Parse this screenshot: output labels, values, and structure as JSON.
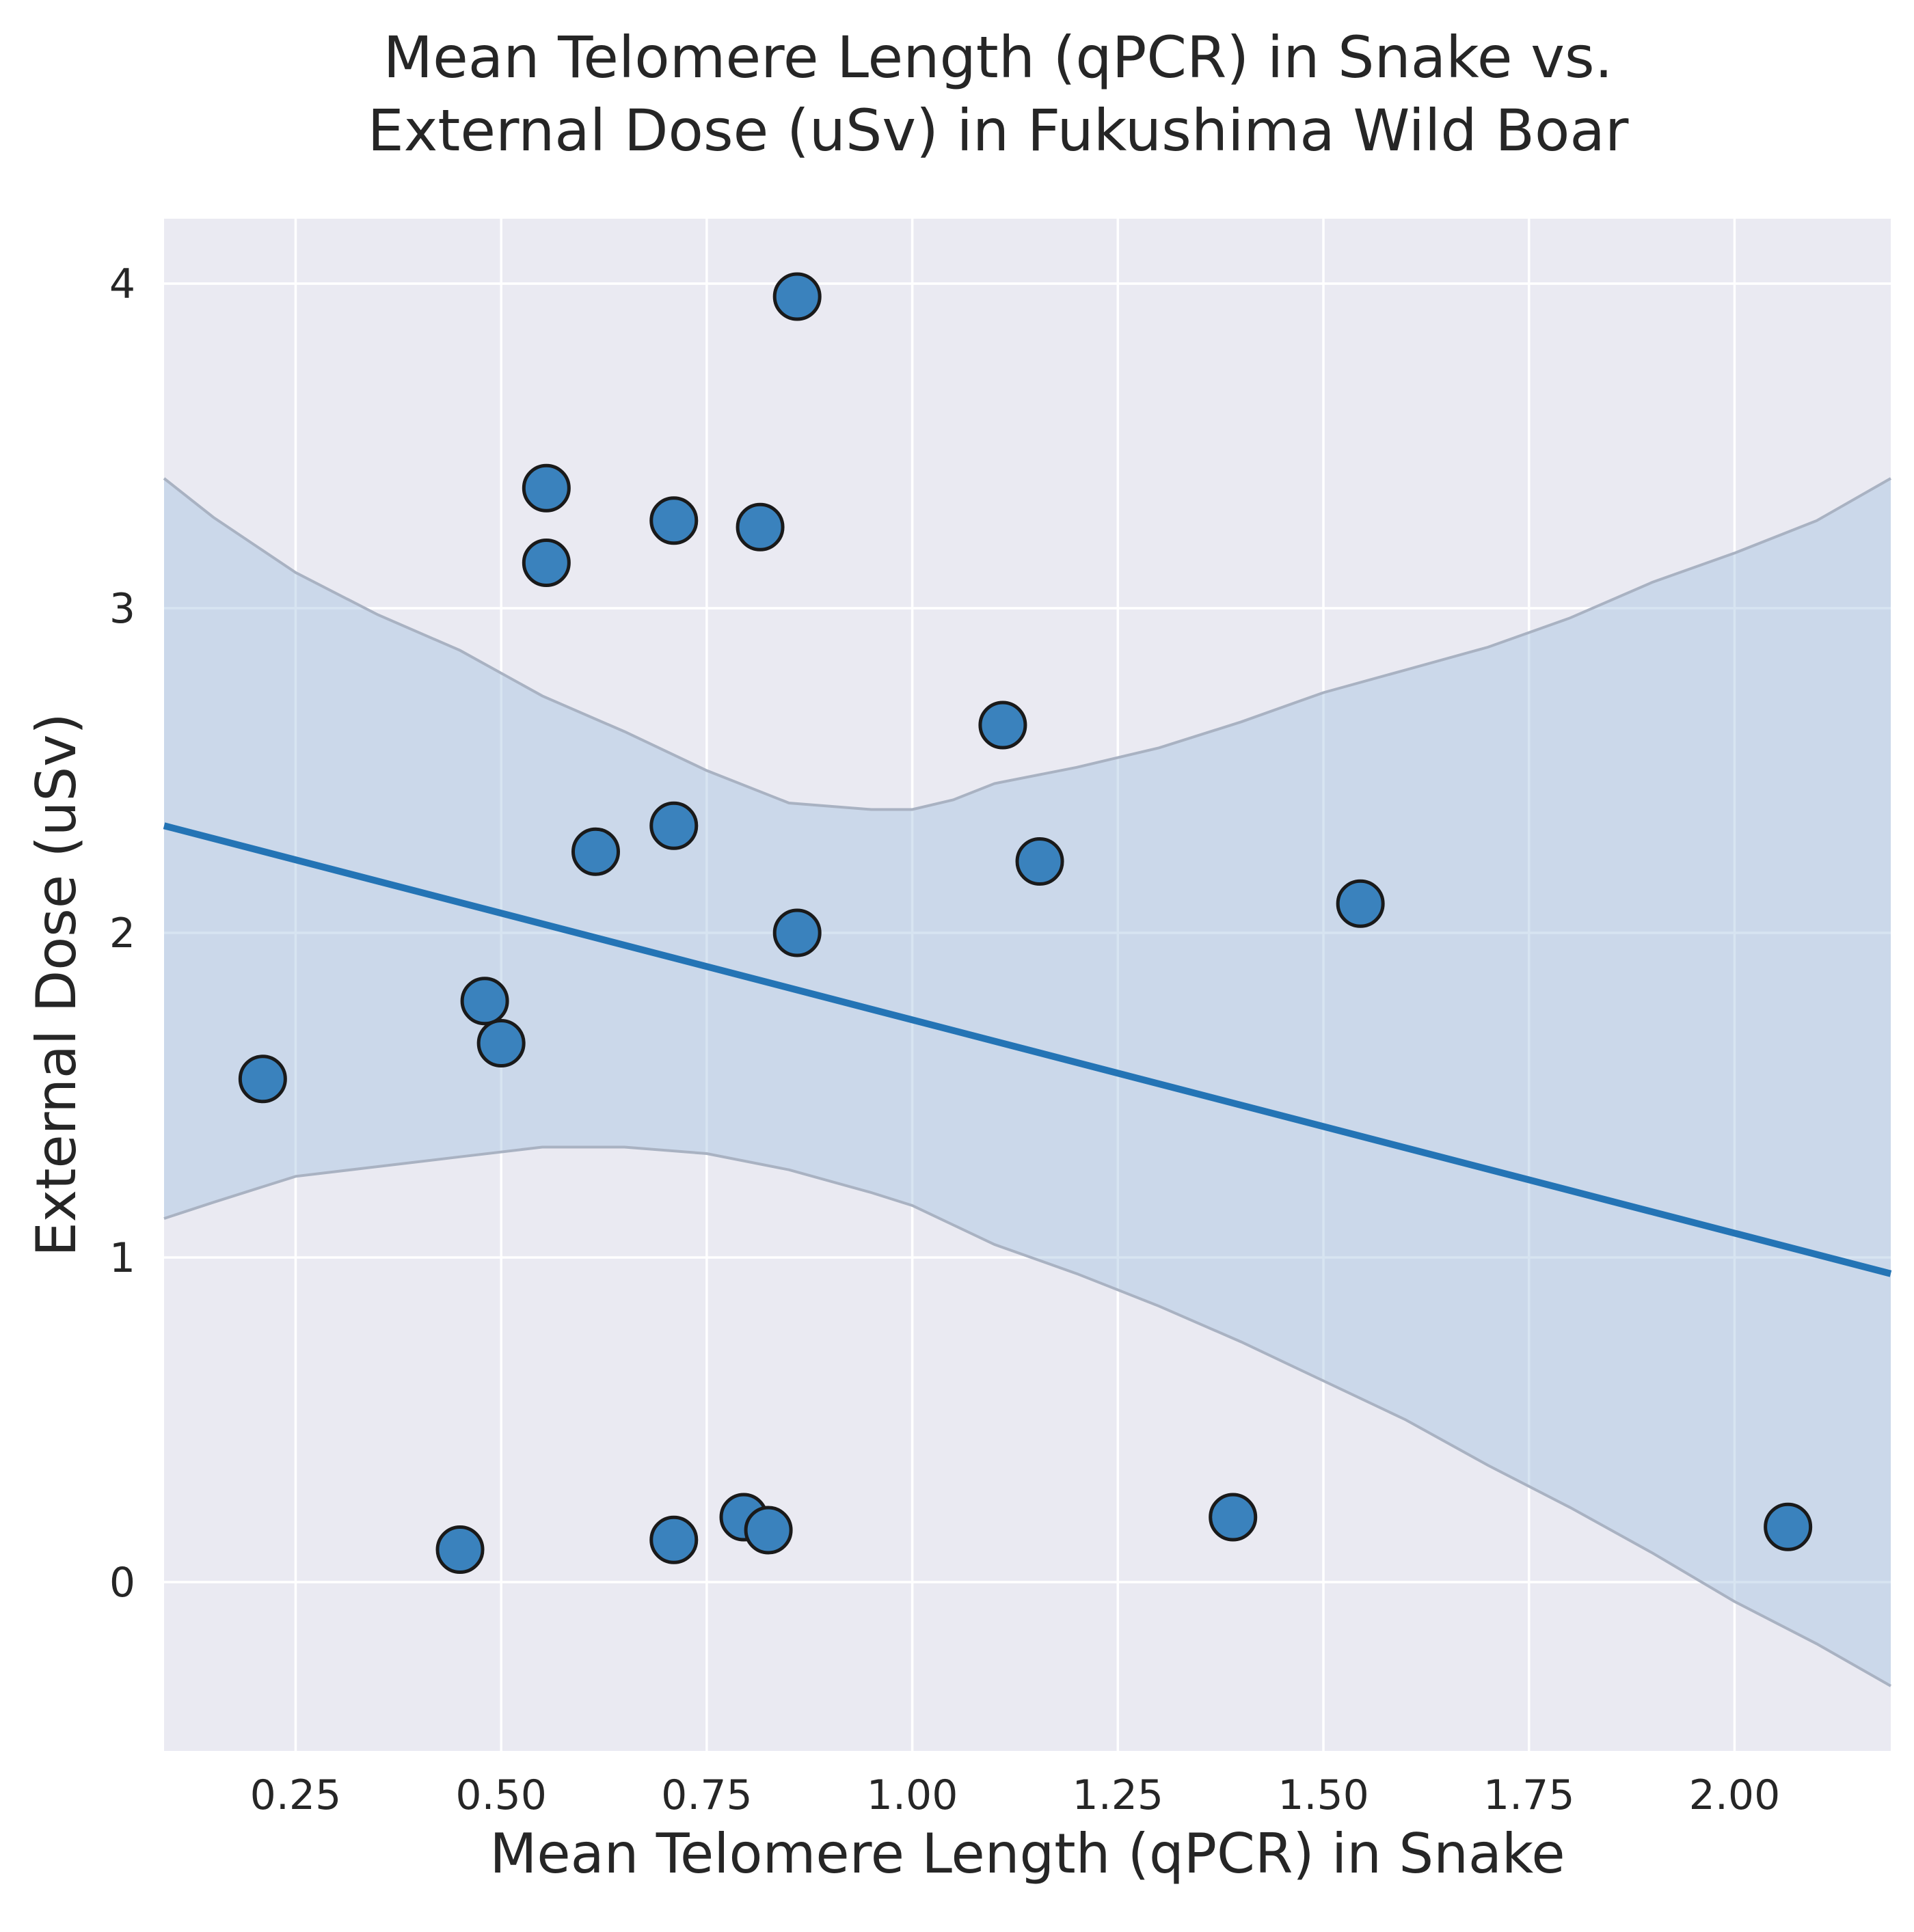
{
  "chart_data": {
    "type": "scatter",
    "title_lines": [
      "Mean Telomere Length (qPCR) in Snake vs.",
      "External Dose (uSv) in Fukushima Wild Boar"
    ],
    "xlabel": "Mean Telomere Length (qPCR) in Snake",
    "ylabel": "External Dose (uSv)",
    "xlim": [
      0.09,
      2.19
    ],
    "ylim": [
      -0.52,
      4.2
    ],
    "xticks": [
      0.25,
      0.5,
      0.75,
      1.0,
      1.25,
      1.5,
      1.75,
      2.0
    ],
    "xtick_labels": [
      "0.25",
      "0.50",
      "0.75",
      "1.00",
      "1.25",
      "1.50",
      "1.75",
      "2.00"
    ],
    "yticks": [
      0,
      1,
      2,
      3,
      4
    ],
    "ytick_labels": [
      "0",
      "1",
      "2",
      "3",
      "4"
    ],
    "grid": true,
    "colors": {
      "background": "#eaeaf2",
      "marker_fill": "#3a82bd",
      "marker_edge": "#1a1a1a",
      "line": "#2474b5",
      "band": "#a6c4e0"
    },
    "points": [
      {
        "x": 0.21,
        "y": 1.55
      },
      {
        "x": 0.45,
        "y": 0.1
      },
      {
        "x": 0.48,
        "y": 1.79
      },
      {
        "x": 0.5,
        "y": 1.66
      },
      {
        "x": 0.555,
        "y": 3.37
      },
      {
        "x": 0.555,
        "y": 3.14
      },
      {
        "x": 0.615,
        "y": 2.25
      },
      {
        "x": 0.71,
        "y": 2.33
      },
      {
        "x": 0.71,
        "y": 3.27
      },
      {
        "x": 0.71,
        "y": 0.13
      },
      {
        "x": 0.795,
        "y": 0.2
      },
      {
        "x": 0.815,
        "y": 3.25
      },
      {
        "x": 0.825,
        "y": 0.16
      },
      {
        "x": 0.86,
        "y": 3.96
      },
      {
        "x": 0.86,
        "y": 2.0
      },
      {
        "x": 1.11,
        "y": 2.64
      },
      {
        "x": 1.155,
        "y": 2.22
      },
      {
        "x": 1.39,
        "y": 0.2
      },
      {
        "x": 1.545,
        "y": 2.09
      },
      {
        "x": 2.065,
        "y": 0.17
      }
    ],
    "regression_line": {
      "x": [
        0.09,
        2.19
      ],
      "y": [
        2.33,
        0.95
      ]
    },
    "confidence_band": {
      "x": [
        0.09,
        0.15,
        0.25,
        0.35,
        0.45,
        0.55,
        0.65,
        0.75,
        0.85,
        0.95,
        1.0,
        1.05,
        1.1,
        1.2,
        1.3,
        1.4,
        1.5,
        1.6,
        1.7,
        1.8,
        1.9,
        2.0,
        2.1,
        2.19
      ],
      "upper": [
        3.4,
        3.28,
        3.11,
        2.98,
        2.87,
        2.73,
        2.62,
        2.5,
        2.4,
        2.38,
        2.38,
        2.41,
        2.46,
        2.51,
        2.57,
        2.65,
        2.74,
        2.81,
        2.88,
        2.97,
        3.08,
        3.17,
        3.27,
        3.4
      ],
      "lower": [
        1.12,
        1.17,
        1.25,
        1.28,
        1.31,
        1.34,
        1.34,
        1.32,
        1.27,
        1.2,
        1.16,
        1.1,
        1.04,
        0.95,
        0.85,
        0.74,
        0.62,
        0.5,
        0.36,
        0.23,
        0.09,
        -0.06,
        -0.19,
        -0.32
      ]
    }
  }
}
